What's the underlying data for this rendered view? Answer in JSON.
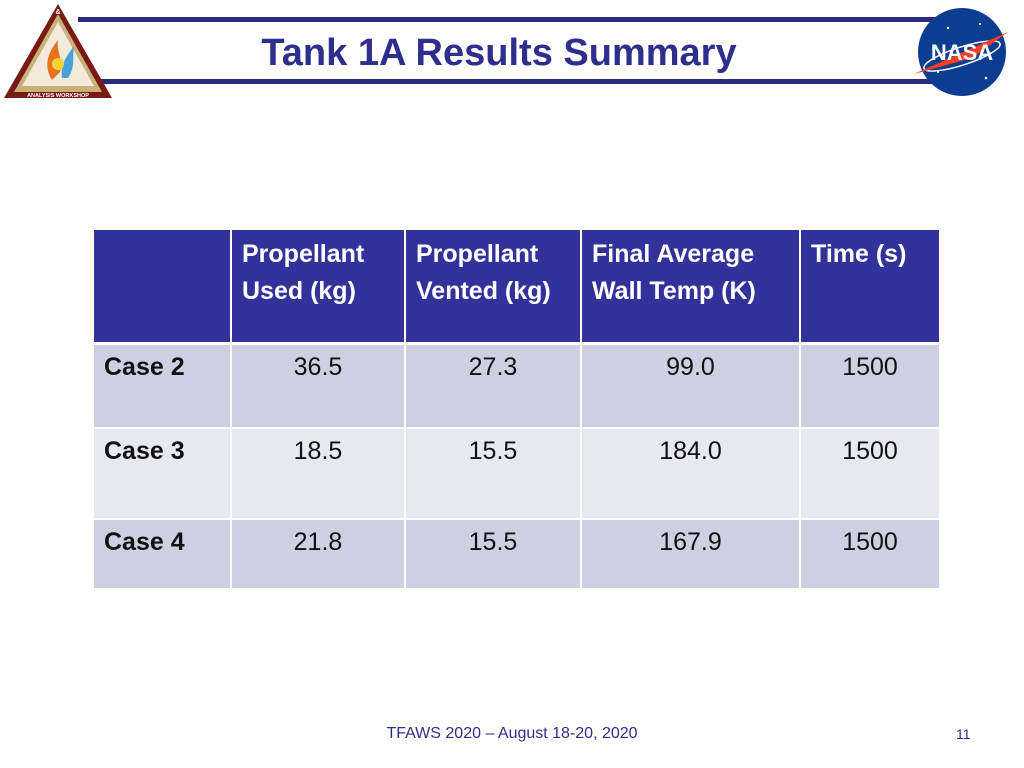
{
  "slide": {
    "title": "Tank 1A Results Summary",
    "footer": "TFAWS 2020 – August 18-20, 2020",
    "page_number": "11"
  },
  "logos": {
    "left": {
      "icon": "thermal-fluids-analysis-workshop-logo",
      "text_top": "&",
      "text_left": "THERMAL",
      "text_right": "FLUIDS",
      "text_bottom": "ANALYSIS WORKSHOP"
    },
    "right": {
      "icon": "nasa-meatball-logo",
      "text": "NASA"
    }
  },
  "table": {
    "headers": [
      "",
      "Propellant Used (kg)",
      "Propellant Vented (kg)",
      "Final Average Wall Temp (K)",
      "Time (s)"
    ],
    "rows": [
      [
        "Case 2",
        "36.5",
        "27.3",
        "99.0",
        "1500"
      ],
      [
        "Case 3",
        "18.5",
        "15.5",
        "184.0",
        "1500"
      ],
      [
        "Case 4",
        "21.8",
        "15.5",
        "167.9",
        "1500"
      ]
    ]
  },
  "colors": {
    "title": "#2e2e8c",
    "header_bg": "#32329a",
    "row_dark": "#cfcfe2",
    "row_light": "#e8e8f1",
    "rule": "#2b2b7c"
  }
}
